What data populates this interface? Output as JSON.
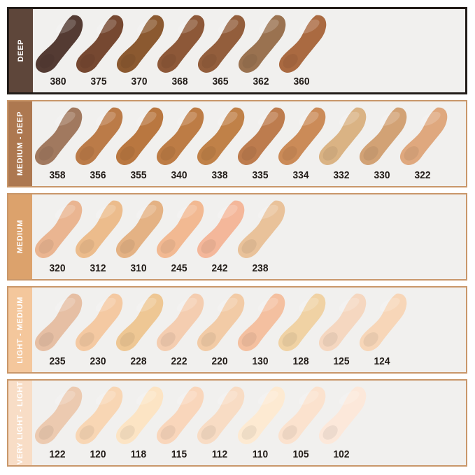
{
  "chart_title": "foundation-shade-swatch-chart",
  "page_background": "#ffffff",
  "row_background": "#f1f0ee",
  "number_text_color": "#221c18",
  "label_text_color": "#ffffff",
  "swatch_style": "paint-smear",
  "rows": [
    {
      "label": "DEEP",
      "sidebar_color": "#5e463a",
      "border_color": "#221c18",
      "border_width": 3,
      "swatches": [
        {
          "shade": "380",
          "color": "#543b33"
        },
        {
          "shade": "375",
          "color": "#764831"
        },
        {
          "shade": "370",
          "color": "#8b5930"
        },
        {
          "shade": "368",
          "color": "#8d5838"
        },
        {
          "shade": "365",
          "color": "#935e3c"
        },
        {
          "shade": "362",
          "color": "#9a7250"
        },
        {
          "shade": "360",
          "color": "#aa6a41"
        }
      ]
    },
    {
      "label": "MEDIUM - DEEP",
      "sidebar_color": "#ad7850",
      "border_color": "#c9976a",
      "border_width": 2,
      "swatches": [
        {
          "shade": "358",
          "color": "#a1795f"
        },
        {
          "shade": "356",
          "color": "#bb7b48"
        },
        {
          "shade": "355",
          "color": "#b97740"
        },
        {
          "shade": "340",
          "color": "#bd7c45"
        },
        {
          "shade": "338",
          "color": "#c08148"
        },
        {
          "shade": "335",
          "color": "#bd7c4e"
        },
        {
          "shade": "334",
          "color": "#cb8b58"
        },
        {
          "shade": "332",
          "color": "#dab384"
        },
        {
          "shade": "330",
          "color": "#d2a275"
        },
        {
          "shade": "322",
          "color": "#dfa87e"
        }
      ]
    },
    {
      "label": "MEDIUM",
      "sidebar_color": "#dca26c",
      "border_color": "#c9976a",
      "border_width": 2,
      "swatches": [
        {
          "shade": "320",
          "color": "#eab591"
        },
        {
          "shade": "312",
          "color": "#ecbc8c"
        },
        {
          "shade": "310",
          "color": "#e4b284"
        },
        {
          "shade": "245",
          "color": "#f2b992"
        },
        {
          "shade": "242",
          "color": "#f4b79a"
        },
        {
          "shade": "238",
          "color": "#e9c29a"
        }
      ]
    },
    {
      "label": "LIGHT - MEDIUM",
      "sidebar_color": "#f4c79c",
      "border_color": "#c9976a",
      "border_width": 2,
      "swatches": [
        {
          "shade": "235",
          "color": "#e6bfa4"
        },
        {
          "shade": "230",
          "color": "#f4c9a2"
        },
        {
          "shade": "228",
          "color": "#eec794"
        },
        {
          "shade": "222",
          "color": "#f4cdb0"
        },
        {
          "shade": "220",
          "color": "#f2cba6"
        },
        {
          "shade": "130",
          "color": "#f4c0a0"
        },
        {
          "shade": "128",
          "color": "#f0d2a4"
        },
        {
          "shade": "125",
          "color": "#f5d7c0"
        },
        {
          "shade": "124",
          "color": "#f7d6b8"
        }
      ]
    },
    {
      "label": "VERY LIGHT - LIGHT",
      "sidebar_color": "#f8ddc6",
      "border_color": "#c9976a",
      "border_width": 2,
      "swatches": [
        {
          "shade": "122",
          "color": "#eccab0"
        },
        {
          "shade": "120",
          "color": "#f8d6b4"
        },
        {
          "shade": "118",
          "color": "#fce4c4"
        },
        {
          "shade": "115",
          "color": "#f9d6bb"
        },
        {
          "shade": "112",
          "color": "#f8dcc4"
        },
        {
          "shade": "110",
          "color": "#fdead2"
        },
        {
          "shade": "105",
          "color": "#fbe2ce"
        },
        {
          "shade": "102",
          "color": "#fce8da"
        }
      ]
    }
  ]
}
